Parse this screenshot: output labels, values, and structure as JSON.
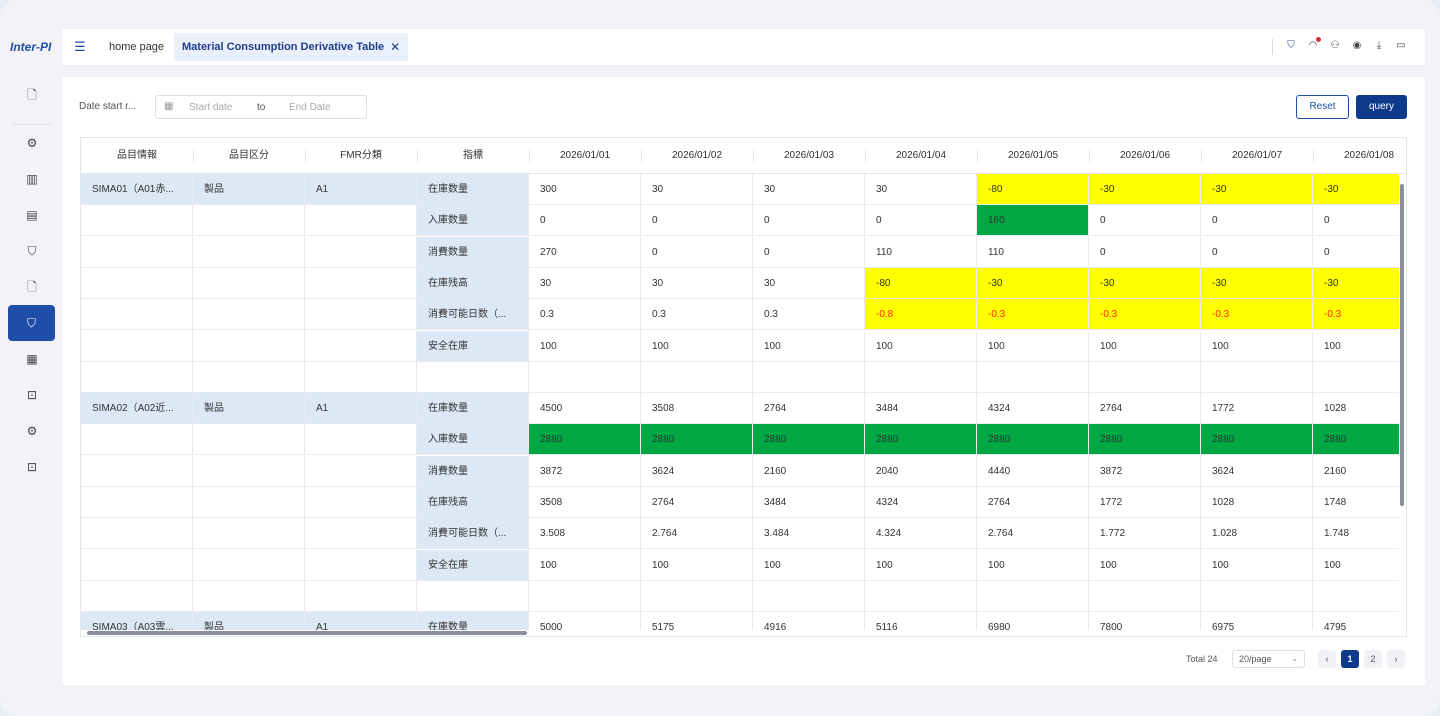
{
  "app": {
    "logo": "Inter-PI"
  },
  "tabs": {
    "home": "home page",
    "active": "Material Consumption Derivative Table",
    "close": "✕"
  },
  "filter": {
    "label": "Date start r...",
    "start_placeholder": "Start date",
    "to": "to",
    "end_placeholder": "End Date"
  },
  "buttons": {
    "reset": "Reset",
    "query": "query"
  },
  "table": {
    "headers": [
      "品目情報",
      "品目区分",
      "FMR分類",
      "指標",
      "2026/01/01",
      "2026/01/02",
      "2026/01/03",
      "2026/01/04",
      "2026/01/05",
      "2026/01/06",
      "2026/01/07",
      "2026/01/08"
    ],
    "groups": [
      {
        "item": "SIMA01（A01赤...",
        "category": "製品",
        "fmr": "A1",
        "rows": [
          {
            "indicator": "在庫数量",
            "values": [
              "300",
              "30",
              "30",
              "30",
              "-80",
              "-30",
              "-30",
              "-30"
            ]
          },
          {
            "indicator": "入庫数量",
            "values": [
              "0",
              "0",
              "0",
              "0",
              "160",
              "0",
              "0",
              "0"
            ]
          },
          {
            "indicator": "消費数量",
            "values": [
              "270",
              "0",
              "0",
              "110",
              "110",
              "0",
              "0",
              "0"
            ]
          },
          {
            "indicator": "在庫残高",
            "values": [
              "30",
              "30",
              "30",
              "-80",
              "-30",
              "-30",
              "-30",
              "-30"
            ]
          },
          {
            "indicator": "消費可能日数（...",
            "values": [
              "0.3",
              "0.3",
              "0.3",
              "-0.8",
              "-0.3",
              "-0.3",
              "-0.3",
              "-0.3"
            ]
          },
          {
            "indicator": "安全在庫",
            "values": [
              "100",
              "100",
              "100",
              "100",
              "100",
              "100",
              "100",
              "100"
            ]
          }
        ]
      },
      {
        "item": "SIMA02（A02近...",
        "category": "製品",
        "fmr": "A1",
        "rows": [
          {
            "indicator": "在庫数量",
            "values": [
              "4500",
              "3508",
              "2764",
              "3484",
              "4324",
              "2764",
              "1772",
              "1028"
            ]
          },
          {
            "indicator": "入庫数量",
            "values": [
              "2880",
              "2880",
              "2880",
              "2880",
              "2880",
              "2880",
              "2880",
              "2880"
            ]
          },
          {
            "indicator": "消費数量",
            "values": [
              "3872",
              "3624",
              "2160",
              "2040",
              "4440",
              "3872",
              "3624",
              "2160"
            ]
          },
          {
            "indicator": "在庫残高",
            "values": [
              "3508",
              "2764",
              "3484",
              "4324",
              "2764",
              "1772",
              "1028",
              "1748"
            ]
          },
          {
            "indicator": "消費可能日数（...",
            "values": [
              "3.508",
              "2.764",
              "3.484",
              "4.324",
              "2.764",
              "1.772",
              "1.028",
              "1.748"
            ]
          },
          {
            "indicator": "安全在庫",
            "values": [
              "100",
              "100",
              "100",
              "100",
              "100",
              "100",
              "100",
              "100"
            ]
          }
        ]
      },
      {
        "item": "SIMA03（A03雲...",
        "category": "製品",
        "fmr": "A1",
        "rows": [
          {
            "indicator": "在庫数量",
            "values": [
              "5000",
              "5175",
              "4916",
              "5116",
              "6980",
              "7800",
              "6975",
              "4795"
            ]
          }
        ]
      }
    ],
    "highlight_colors": {
      "warning": "#ffff00",
      "inbound": "#00a843",
      "negative_text": "#ff2a00"
    }
  },
  "pagination": {
    "total": "Total 24",
    "page_size": "20/page",
    "prev": "‹",
    "pages": [
      "1",
      "2"
    ],
    "next": "›",
    "current": "1"
  }
}
